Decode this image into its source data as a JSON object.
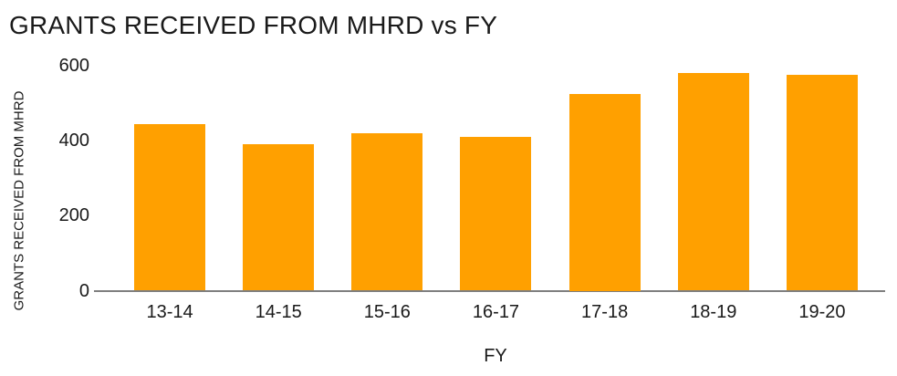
{
  "chart_data": {
    "type": "bar",
    "title": "GRANTS RECEIVED FROM MHRD vs FY",
    "xlabel": "FY",
    "ylabel": "GRANTS RECEIVED FROM MHRD",
    "categories": [
      "13-14",
      "14-15",
      "15-16",
      "16-17",
      "17-18",
      "18-19",
      "19-20"
    ],
    "values": [
      445,
      390,
      420,
      410,
      525,
      580,
      575
    ],
    "ylim": [
      0,
      600
    ],
    "yticks": [
      0,
      200,
      400,
      600
    ],
    "grid": false,
    "legend_position": "none",
    "bar_color": "#FFA000",
    "axis_line_color": "#7f7f7f",
    "text_color": "#1a1a1a",
    "background_color": "#ffffff"
  }
}
